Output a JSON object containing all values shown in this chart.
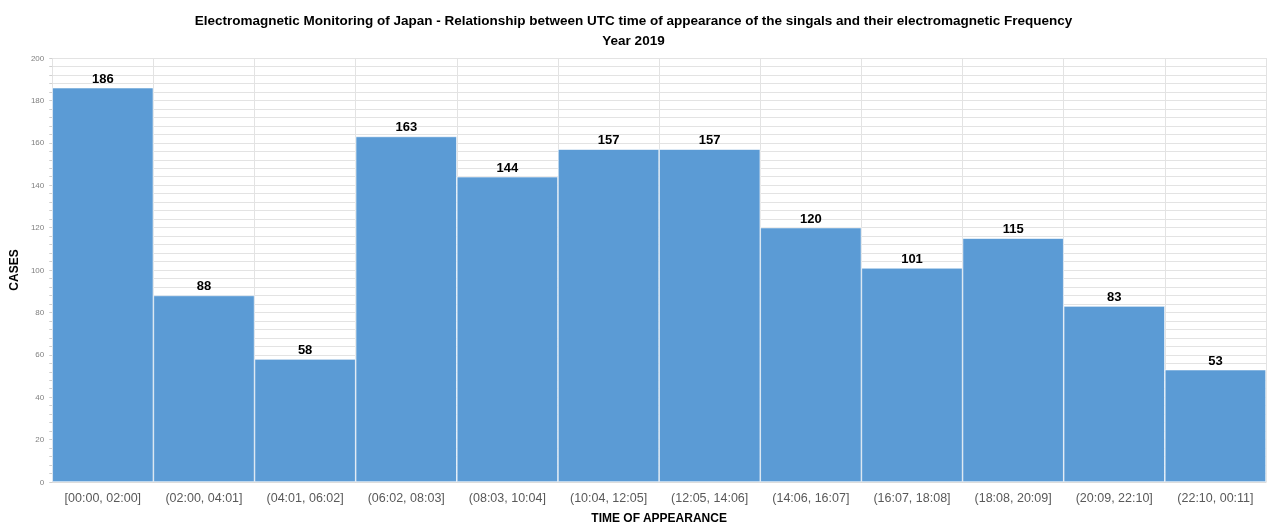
{
  "chart_data": {
    "type": "bar",
    "title": "Electromagnetic Monitoring of Japan - Relationship between UTC time of appearance of the singals and their electromagnetic Frequency",
    "subtitle": "Year 2019",
    "xlabel": "TIME OF APPEARANCE",
    "ylabel": "CASES",
    "categories": [
      "[00:00, 02:00]",
      "(02:00, 04:01]",
      "(04:01, 06:02]",
      "(06:02, 08:03]",
      "(08:03, 10:04]",
      "(10:04, 12:05]",
      "(12:05, 14:06]",
      "(14:06, 16:07]",
      "(16:07, 18:08]",
      "(18:08, 20:09]",
      "(20:09, 22:10]",
      "(22:10, 00:11]"
    ],
    "values": [
      186,
      88,
      58,
      163,
      144,
      157,
      157,
      120,
      101,
      115,
      83,
      53
    ],
    "color": "#5b9bd5",
    "data_labels": true,
    "grid": true,
    "ylim": [
      0,
      200
    ],
    "yticks": [
      0,
      {
        "value": 4,
        "label": null
      },
      {
        "value": 8,
        "label": null
      },
      {
        "value": 12,
        "label": null
      },
      {
        "value": 16,
        "label": null
      },
      20,
      {
        "value": 24,
        "label": null
      },
      {
        "value": 28,
        "label": null
      },
      {
        "value": 32,
        "label": null
      },
      {
        "value": 36,
        "label": null
      },
      40,
      {
        "value": 44,
        "label": null
      },
      {
        "value": 48,
        "label": null
      },
      {
        "value": 52,
        "label": null
      },
      {
        "value": 56,
        "label": null
      },
      60,
      {
        "value": 64,
        "label": null
      },
      {
        "value": 68,
        "label": null
      },
      {
        "value": 72,
        "label": null
      },
      {
        "value": 76,
        "label": null
      },
      80,
      {
        "value": 84,
        "label": null
      },
      {
        "value": 88,
        "label": null
      },
      {
        "value": 92,
        "label": null
      },
      {
        "value": 96,
        "label": null
      },
      100,
      {
        "value": 104,
        "label": null
      },
      {
        "value": 108,
        "label": null
      },
      {
        "value": 112,
        "label": null
      },
      {
        "value": 116,
        "label": null
      },
      120,
      {
        "value": 124,
        "label": null
      },
      {
        "value": 128,
        "label": null
      },
      {
        "value": 132,
        "label": null
      },
      {
        "value": 136,
        "label": null
      },
      140,
      {
        "value": 144,
        "label": null
      },
      {
        "value": 148,
        "label": null
      },
      {
        "value": 152,
        "label": null
      },
      {
        "value": 156,
        "label": null
      },
      160,
      {
        "value": 164,
        "label": null
      },
      {
        "value": 168,
        "label": null
      },
      {
        "value": 172,
        "label": null
      },
      {
        "value": 176,
        "label": null
      },
      180,
      {
        "value": 184,
        "label": null
      },
      {
        "value": 188,
        "label": null
      },
      {
        "value": 192,
        "label": null
      },
      {
        "value": 196,
        "label": null
      },
      200
    ]
  }
}
